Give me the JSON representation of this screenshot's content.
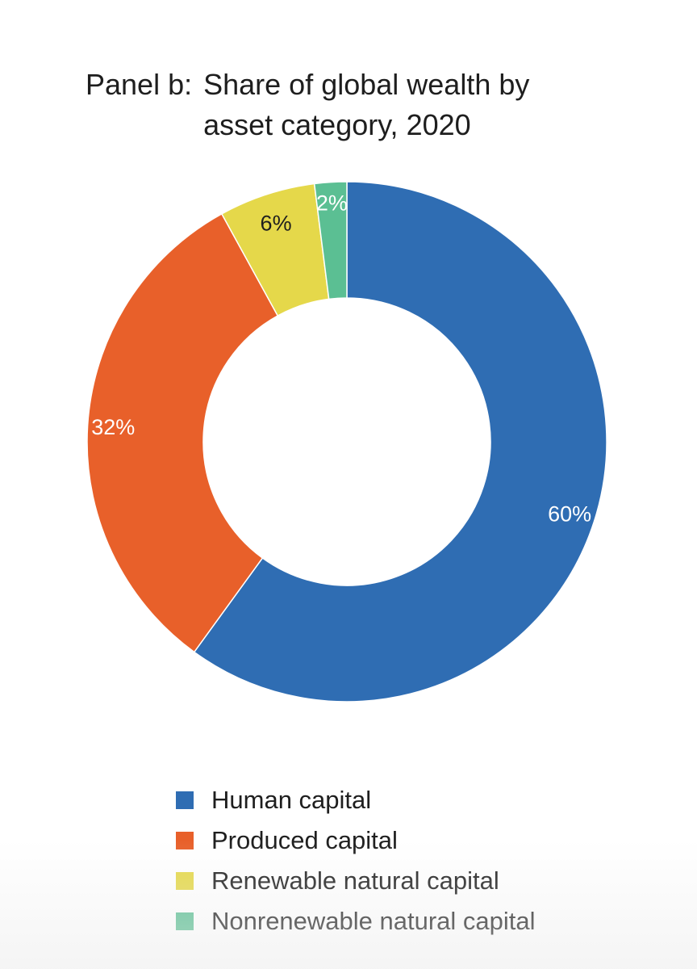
{
  "title": {
    "prefix": "Panel b:",
    "text": "Share of global wealth by asset category, 2020"
  },
  "chart_data": {
    "type": "pie",
    "style": "donut",
    "title": "Panel b: Share of global wealth by asset category, 2020",
    "unit": "%",
    "legend_position": "bottom",
    "slices": [
      {
        "name": "Human capital",
        "value": 60,
        "label": "60%",
        "color": "#2f6db3",
        "label_color": "#ffffff"
      },
      {
        "name": "Produced capital",
        "value": 32,
        "label": "32%",
        "color": "#e8602a",
        "label_color": "#ffffff"
      },
      {
        "name": "Renewable natural capital",
        "value": 6,
        "label": "6%",
        "color": "#e5d84a",
        "label_color": "#1e1e1e"
      },
      {
        "name": "Nonrenewable natural capital",
        "value": 2,
        "label": "2%",
        "color": "#5bbf93",
        "label_color": "#ffffff"
      }
    ]
  }
}
